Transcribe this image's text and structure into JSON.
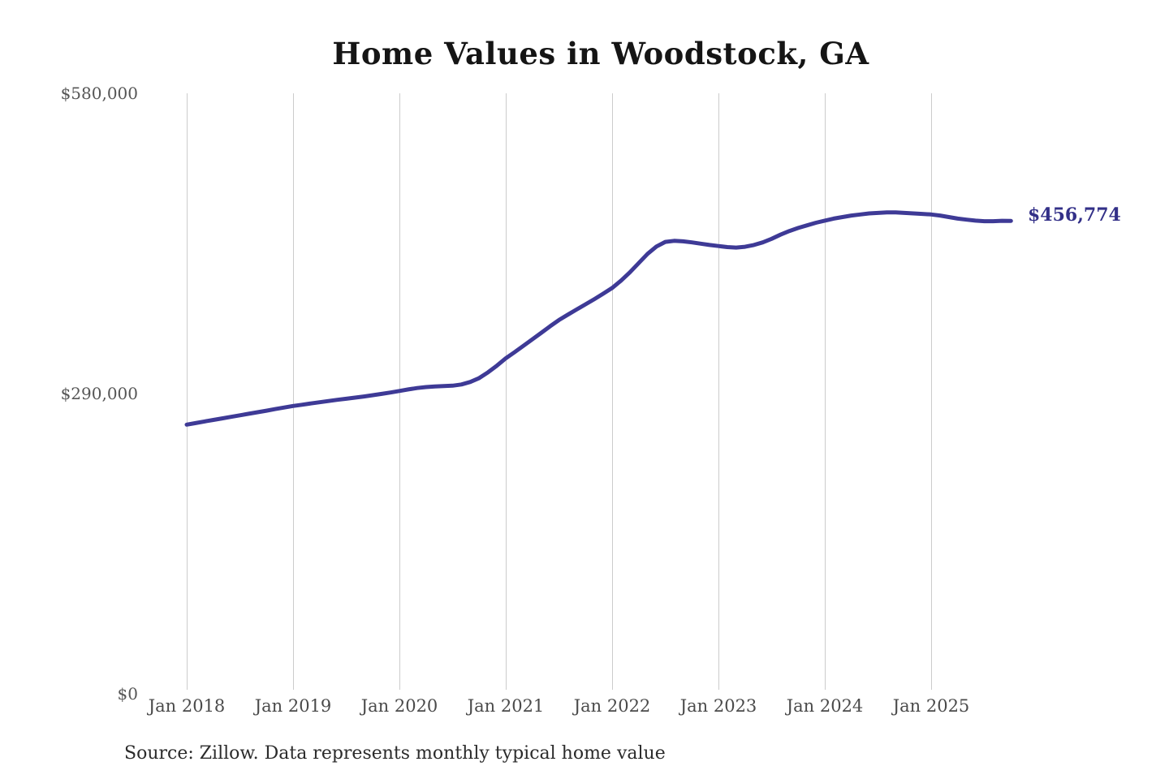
{
  "chart": {
    "title": "Home Values in Woodstock, GA",
    "end_label": "$456,774",
    "source": "Source: Zillow. Data represents monthly typical home value"
  },
  "chart_data": {
    "type": "line",
    "title": "Home Values in Woodstock, GA",
    "xlabel": "",
    "ylabel": "",
    "ylim": [
      0,
      580000
    ],
    "grid": "vertical-only",
    "legend_position": "none",
    "line_color": "#3e3a96",
    "end_label_color": "#333088",
    "grid_color": "#cccccc",
    "latest_value": 456774,
    "latest_value_label": "$456,774",
    "source": "Source: Zillow. Data represents monthly typical home value",
    "y_ticks": [
      {
        "label": "$580,000",
        "value": 580000
      },
      {
        "label": "$290,000",
        "value": 290000
      },
      {
        "label": "$0",
        "value": 0
      }
    ],
    "x_ticks": [
      {
        "label": "Jan 2018",
        "month": 0
      },
      {
        "label": "Jan 2019",
        "month": 12
      },
      {
        "label": "Jan 2020",
        "month": 24
      },
      {
        "label": "Jan 2021",
        "month": 36
      },
      {
        "label": "Jan 2022",
        "month": 48
      },
      {
        "label": "Jan 2023",
        "month": 60
      },
      {
        "label": "Jan 2024",
        "month": 72
      },
      {
        "label": "Jan 2025",
        "month": 84
      }
    ],
    "series": [
      {
        "name": "Monthly typical home value",
        "start_month": "Jan 2018",
        "end_month": "Oct 2025",
        "values": [
          260000,
          261500,
          263000,
          264500,
          266000,
          267500,
          269000,
          270500,
          272000,
          273500,
          275000,
          276500,
          278000,
          279200,
          280400,
          281600,
          282800,
          284000,
          285000,
          286100,
          287200,
          288400,
          289700,
          291000,
          292500,
          294000,
          295300,
          296300,
          296900,
          297200,
          297600,
          298800,
          301200,
          305000,
          310500,
          317000,
          324000,
          330000,
          336200,
          342400,
          348600,
          355000,
          361000,
          366200,
          371200,
          376200,
          381200,
          386500,
          392000,
          399000,
          407000,
          416000,
          425000,
          432000,
          436500,
          437500,
          437000,
          436000,
          434800,
          433500,
          432500,
          431500,
          431000,
          431800,
          433500,
          436000,
          439500,
          443500,
          447000,
          450000,
          452500,
          455000,
          457000,
          459000,
          460500,
          462000,
          463000,
          464000,
          464500,
          465000,
          465000,
          464500,
          464000,
          463500,
          463000,
          462000,
          460500,
          459000,
          458000,
          457000,
          456500,
          456500,
          456900,
          456774
        ]
      }
    ]
  }
}
